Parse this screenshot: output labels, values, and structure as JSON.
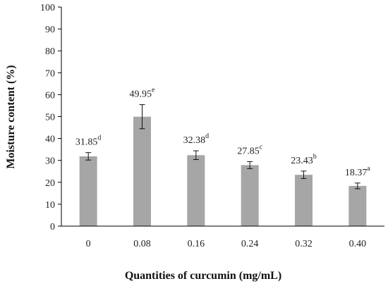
{
  "chart_data": {
    "type": "bar",
    "title": "",
    "xlabel": "Quantities of curcumin (mg/mL)",
    "ylabel": "Moisture content (%)",
    "ylim": [
      0,
      100
    ],
    "yticks": [
      "0",
      "10",
      "20",
      "30",
      "40",
      "50",
      "60",
      "70",
      "80",
      "90",
      "100"
    ],
    "grid": false,
    "legend": "none",
    "categories": [
      "0",
      "0.08",
      "0.16",
      "0.24",
      "0.32",
      "0.40"
    ],
    "values": [
      31.85,
      49.95,
      32.38,
      27.85,
      23.43,
      18.37
    ],
    "value_labels": [
      "31.85",
      "49.95",
      "32.38",
      "27.85",
      "23.43",
      "18.37"
    ],
    "significance": [
      "d",
      "e",
      "d",
      "c",
      "b",
      "a"
    ],
    "errors": [
      1.7,
      5.5,
      2.0,
      1.6,
      1.7,
      1.3
    ],
    "bar_color": "#a6a6a6",
    "axis_color": "#000000"
  }
}
